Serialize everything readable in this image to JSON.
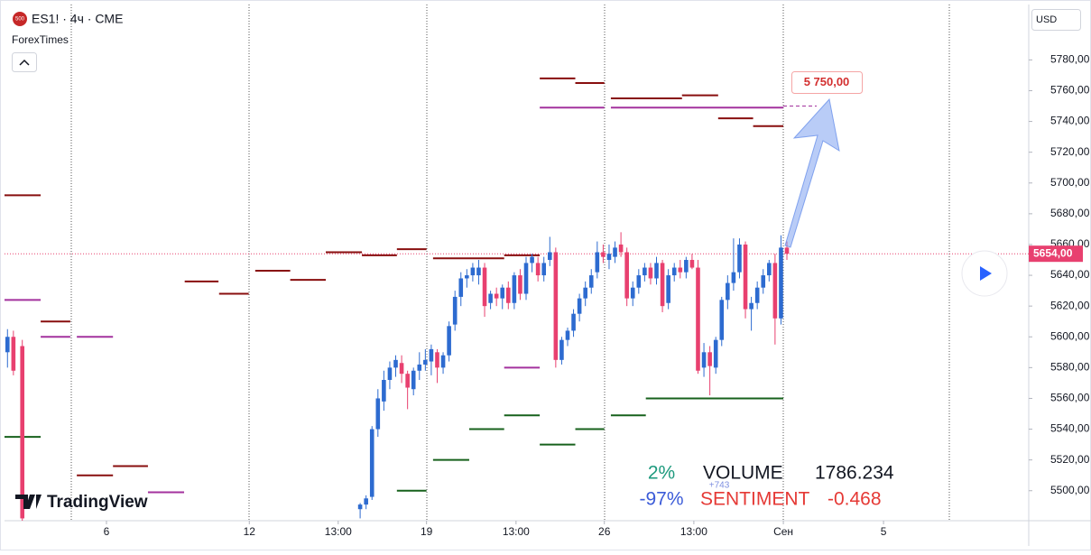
{
  "header": {
    "badge": "500",
    "symbol": "ES1! · 4ч · CME",
    "indicator": "ForexTimes",
    "currency": "USD",
    "logo": "TradingView"
  },
  "chart_data": {
    "type": "candlestick",
    "xlim": [
      0,
      172.8
    ],
    "ylim": [
      5480.5,
      5816
    ],
    "xticks": [
      {
        "value": 17.2,
        "label": "6"
      },
      {
        "value": 41.3,
        "label": "12"
      },
      {
        "value": 56.3,
        "label": "13:00"
      },
      {
        "value": 71.2,
        "label": "19"
      },
      {
        "value": 86.3,
        "label": "13:00"
      },
      {
        "value": 101.2,
        "label": "26"
      },
      {
        "value": 116.3,
        "label": "13:00"
      },
      {
        "value": 131.4,
        "label": "Сен"
      },
      {
        "value": 148.3,
        "label": "5"
      }
    ],
    "yticks": [
      {
        "value": 5500,
        "label": "5500,00"
      },
      {
        "value": 5520,
        "label": "5520,00"
      },
      {
        "value": 5540,
        "label": "5540,00"
      },
      {
        "value": 5560,
        "label": "5560,00"
      },
      {
        "value": 5580,
        "label": "5580,00"
      },
      {
        "value": 5600,
        "label": "5600,00"
      },
      {
        "value": 5620,
        "label": "5620,00"
      },
      {
        "value": 5640,
        "label": "5640,00"
      },
      {
        "value": 5660,
        "label": "5660,00"
      },
      {
        "value": 5680,
        "label": "5680,00"
      },
      {
        "value": 5700,
        "label": "5700,00"
      },
      {
        "value": 5720,
        "label": "5720,00"
      },
      {
        "value": 5740,
        "label": "5740,00"
      },
      {
        "value": 5760,
        "label": "5760,00"
      },
      {
        "value": 5780,
        "label": "5780,00"
      }
    ],
    "up_color": "#2d6bd0",
    "down_color": "#e8406f",
    "candles": {
      "x": [
        0.5,
        1.5,
        3,
        60,
        61,
        62,
        63,
        64,
        65,
        66,
        67,
        68,
        69,
        70,
        71,
        72,
        73,
        74,
        75,
        76,
        77,
        78,
        79,
        80,
        81,
        82,
        83,
        84,
        85,
        86,
        87,
        88,
        89,
        90,
        91,
        92,
        93,
        94,
        95,
        96,
        97,
        98,
        99,
        100,
        101,
        102,
        103,
        104,
        105,
        106,
        107,
        108,
        109,
        110,
        111,
        112,
        113,
        114,
        115,
        116,
        117,
        118,
        119,
        120,
        121,
        122,
        123,
        124,
        125,
        126,
        127,
        128,
        129,
        130,
        131,
        132
      ],
      "open": [
        5590,
        5600,
        5594,
        5488,
        5491,
        5496,
        5540,
        5558,
        5572,
        5580,
        5583,
        5576,
        5566,
        5578,
        5582,
        5584,
        5590,
        5580,
        5588,
        5608,
        5626,
        5638,
        5640,
        5640,
        5645,
        5622,
        5628,
        5625,
        5632,
        5622,
        5640,
        5628,
        5648,
        5648,
        5640,
        5650,
        5655,
        5585,
        5598,
        5604,
        5615,
        5625,
        5632,
        5642,
        5655,
        5650,
        5652,
        5660,
        5655,
        5625,
        5632,
        5640,
        5645,
        5638,
        5648,
        5622,
        5640,
        5645,
        5642,
        5650,
        5645,
        5580,
        5590,
        5580,
        5598,
        5624,
        5635,
        5642,
        5660,
        5618,
        5622,
        5632,
        5640,
        5648,
        5612,
        5658
      ],
      "high": [
        5605,
        5604,
        5598,
        5492,
        5497,
        5542,
        5566,
        5578,
        5584,
        5588,
        5588,
        5578,
        5580,
        5590,
        5592,
        5595,
        5592,
        5590,
        5610,
        5630,
        5642,
        5644,
        5648,
        5650,
        5648,
        5630,
        5632,
        5634,
        5636,
        5642,
        5644,
        5652,
        5654,
        5652,
        5652,
        5665,
        5658,
        5600,
        5606,
        5618,
        5628,
        5636,
        5644,
        5662,
        5660,
        5660,
        5662,
        5668,
        5658,
        5636,
        5644,
        5648,
        5648,
        5652,
        5650,
        5644,
        5648,
        5650,
        5652,
        5654,
        5650,
        5596,
        5594,
        5600,
        5626,
        5640,
        5664,
        5664,
        5662,
        5626,
        5636,
        5644,
        5650,
        5654,
        5666,
        5662
      ],
      "low": [
        5580,
        5575,
        5480,
        5482,
        5488,
        5494,
        5535,
        5552,
        5566,
        5574,
        5570,
        5553,
        5562,
        5572,
        5578,
        5575,
        5570,
        5576,
        5584,
        5604,
        5620,
        5632,
        5636,
        5634,
        5613,
        5618,
        5620,
        5618,
        5618,
        5618,
        5624,
        5624,
        5642,
        5636,
        5636,
        5646,
        5580,
        5582,
        5594,
        5600,
        5610,
        5620,
        5628,
        5638,
        5648,
        5644,
        5648,
        5652,
        5620,
        5620,
        5628,
        5636,
        5634,
        5634,
        5616,
        5618,
        5636,
        5638,
        5638,
        5644,
        5576,
        5574,
        5562,
        5576,
        5594,
        5618,
        5630,
        5638,
        5612,
        5604,
        5618,
        5628,
        5636,
        5595,
        5608,
        5650
      ],
      "close": [
        5600,
        5578,
        5482,
        5491,
        5495,
        5540,
        5560,
        5572,
        5580,
        5585,
        5576,
        5567,
        5578,
        5582,
        5585,
        5592,
        5580,
        5588,
        5607,
        5626,
        5638,
        5640,
        5645,
        5645,
        5620,
        5628,
        5625,
        5632,
        5622,
        5640,
        5628,
        5648,
        5652,
        5640,
        5648,
        5655,
        5585,
        5598,
        5604,
        5615,
        5625,
        5632,
        5640,
        5655,
        5652,
        5654,
        5658,
        5655,
        5625,
        5632,
        5640,
        5645,
        5638,
        5648,
        5620,
        5640,
        5645,
        5642,
        5650,
        5645,
        5578,
        5590,
        5581,
        5598,
        5624,
        5635,
        5642,
        5660,
        5618,
        5622,
        5632,
        5640,
        5648,
        5612,
        5658,
        5654
      ]
    },
    "levels": [
      {
        "y": 5692,
        "x": [
          0,
          6.1
        ],
        "color": "#880e0e"
      },
      {
        "y": 5610,
        "x": [
          6.1,
          11.1
        ],
        "color": "#880e0e"
      },
      {
        "y": 5510,
        "x": [
          12.2,
          18.3
        ],
        "color": "#880e0e"
      },
      {
        "y": 5516,
        "x": [
          18.3,
          24.2
        ],
        "color": "#880e0e"
      },
      {
        "y": 5636,
        "x": [
          30.4,
          36.1
        ],
        "color": "#880e0e"
      },
      {
        "y": 5628,
        "x": [
          36.2,
          41.2
        ],
        "color": "#880e0e"
      },
      {
        "y": 5643,
        "x": [
          42.3,
          48.2
        ],
        "color": "#880e0e"
      },
      {
        "y": 5637,
        "x": [
          48.2,
          54.2
        ],
        "color": "#880e0e"
      },
      {
        "y": 5655,
        "x": [
          54.2,
          60.3
        ],
        "color": "#880e0e"
      },
      {
        "y": 5653,
        "x": [
          60.3,
          66.2
        ],
        "color": "#880e0e"
      },
      {
        "y": 5657,
        "x": [
          66.2,
          71.2
        ],
        "color": "#880e0e"
      },
      {
        "y": 5651,
        "x": [
          72.3,
          84.3
        ],
        "color": "#880e0e"
      },
      {
        "y": 5653,
        "x": [
          84.3,
          90.3
        ],
        "color": "#880e0e"
      },
      {
        "y": 5768,
        "x": [
          90.3,
          96.3
        ],
        "color": "#880e0e"
      },
      {
        "y": 5765,
        "x": [
          96.3,
          101.2
        ],
        "color": "#880e0e"
      },
      {
        "y": 5755,
        "x": [
          102.3,
          114.3
        ],
        "color": "#880e0e"
      },
      {
        "y": 5757,
        "x": [
          114.3,
          120.4
        ],
        "color": "#880e0e"
      },
      {
        "y": 5742,
        "x": [
          120.4,
          126.3
        ],
        "color": "#880e0e"
      },
      {
        "y": 5737,
        "x": [
          126.3,
          131.4
        ],
        "color": "#880e0e"
      },
      {
        "y": 5624,
        "x": [
          0,
          6.1
        ],
        "color": "#a3329e"
      },
      {
        "y": 5600,
        "x": [
          6.1,
          11.1
        ],
        "color": "#a3329e"
      },
      {
        "y": 5600,
        "x": [
          12.2,
          18.3
        ],
        "color": "#a3329e"
      },
      {
        "y": 5499,
        "x": [
          24.2,
          30.3
        ],
        "color": "#a3329e"
      },
      {
        "y": 5580,
        "x": [
          84.3,
          90.3
        ],
        "color": "#a3329e"
      },
      {
        "y": 5749,
        "x": [
          90.3,
          101.2
        ],
        "color": "#a3329e"
      },
      {
        "y": 5749,
        "x": [
          102.3,
          131.4
        ],
        "color": "#a3329e"
      },
      {
        "y": 5535,
        "x": [
          0,
          6.1
        ],
        "color": "#17611c"
      },
      {
        "y": 5500,
        "x": [
          66.2,
          71.2
        ],
        "color": "#17611c"
      },
      {
        "y": 5520,
        "x": [
          72.3,
          78.4
        ],
        "color": "#17611c"
      },
      {
        "y": 5540,
        "x": [
          78.4,
          84.3
        ],
        "color": "#17611c"
      },
      {
        "y": 5549,
        "x": [
          84.3,
          90.3
        ],
        "color": "#17611c"
      },
      {
        "y": 5530,
        "x": [
          90.3,
          96.3
        ],
        "color": "#17611c"
      },
      {
        "y": 5540,
        "x": [
          96.3,
          101.2
        ],
        "color": "#17611c"
      },
      {
        "y": 5549,
        "x": [
          102.3,
          108.2
        ],
        "color": "#17611c"
      },
      {
        "y": 5560,
        "x": [
          108.2,
          131.4
        ],
        "color": "#17611c"
      }
    ],
    "last_price": {
      "value": 5654,
      "label": "5654,00"
    },
    "target": {
      "value": 5750,
      "label": "5 750,00"
    },
    "annotations": [
      "+743"
    ],
    "stats": {
      "rows": [
        [
          "2%",
          "VOLUME",
          "1786.234"
        ],
        [
          "-97%",
          "SENTIMENT",
          "-0.468"
        ]
      ]
    }
  }
}
